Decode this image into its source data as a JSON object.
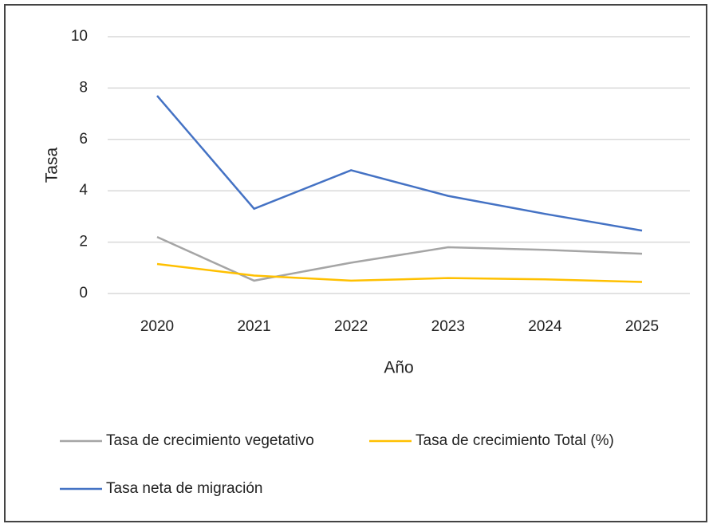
{
  "chart_data": {
    "type": "line",
    "categories": [
      "2020",
      "2021",
      "2022",
      "2023",
      "2024",
      "2025"
    ],
    "series": [
      {
        "name": "Tasa de crecimiento vegetativo",
        "color": "#a5a5a5",
        "values": [
          2.2,
          0.5,
          1.2,
          1.8,
          1.7,
          1.55
        ]
      },
      {
        "name": "Tasa de crecimiento Total (%)",
        "color": "#ffc000",
        "values": [
          1.15,
          0.7,
          0.5,
          0.6,
          0.55,
          0.45
        ]
      },
      {
        "name": "Tasa neta de migración",
        "color": "#4472c4",
        "values": [
          7.7,
          3.3,
          4.8,
          3.8,
          3.1,
          2.45
        ]
      }
    ],
    "xlabel": "Año",
    "ylabel": "Tasa",
    "ylim": [
      0,
      10
    ],
    "yticks": [
      0,
      2,
      4,
      6,
      8,
      10
    ],
    "grid": true,
    "legend": "bottom"
  }
}
